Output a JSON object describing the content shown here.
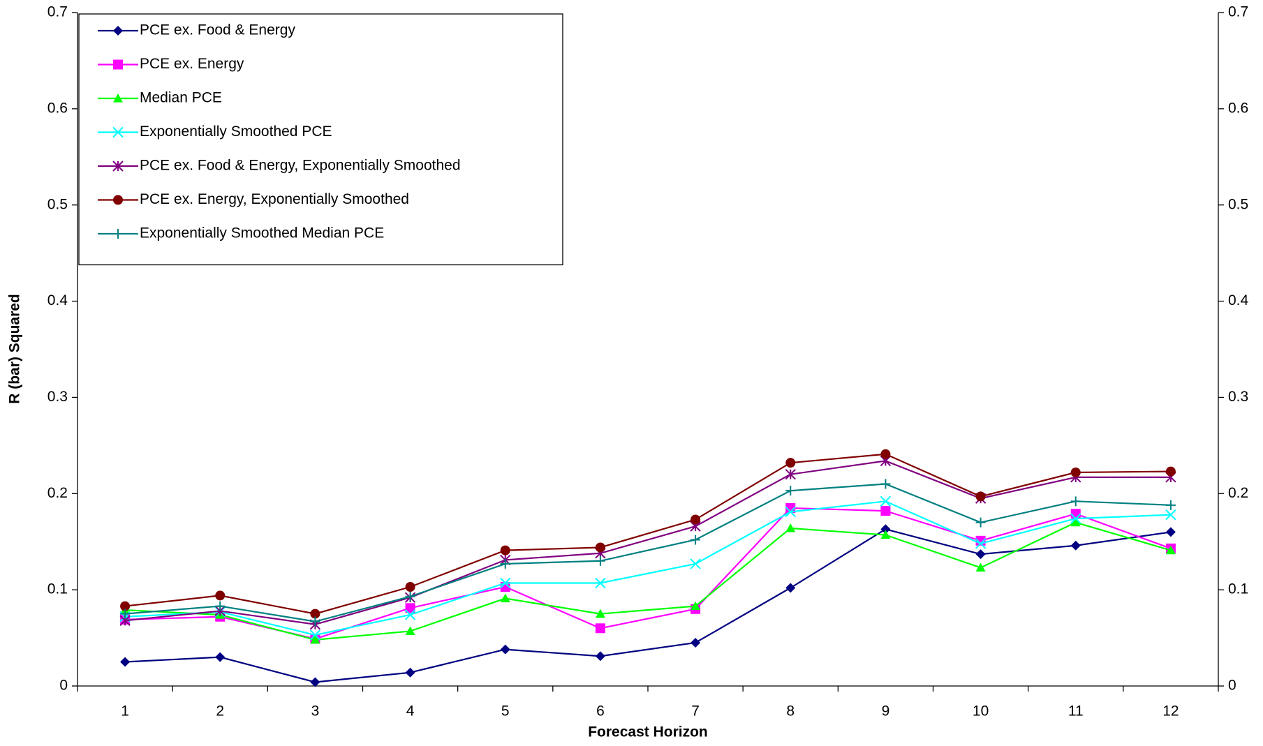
{
  "chart_data": {
    "type": "line",
    "x_label": "Forecast Horizon",
    "y_label": "R (bar) Squared",
    "categories": [
      "1",
      "2",
      "3",
      "4",
      "5",
      "6",
      "7",
      "8",
      "9",
      "10",
      "11",
      "12"
    ],
    "ylim": [
      0,
      0.7
    ],
    "yticks": [
      0,
      0.1,
      0.2,
      0.3,
      0.4,
      0.5,
      0.6,
      0.7
    ],
    "y2lim": [
      0,
      0.7
    ],
    "y2ticks": [
      0,
      0.1,
      0.2,
      0.3,
      0.4,
      0.5,
      0.6,
      0.7
    ],
    "legend": "upper left",
    "series": [
      {
        "name": "PCE ex. Food & Energy",
        "color": "#000080",
        "marker": "diamond",
        "values": [
          0.025,
          0.03,
          0.004,
          0.014,
          0.038,
          0.031,
          0.045,
          0.102,
          0.163,
          0.137,
          0.146,
          0.16
        ]
      },
      {
        "name": "PCE ex. Energy",
        "color": "#ff00ff",
        "marker": "square",
        "values": [
          0.069,
          0.072,
          0.049,
          0.081,
          0.103,
          0.06,
          0.08,
          0.185,
          0.182,
          0.151,
          0.179,
          0.143
        ]
      },
      {
        "name": "Median PCE",
        "color": "#00ff00",
        "marker": "triangle",
        "values": [
          0.079,
          0.074,
          0.048,
          0.057,
          0.091,
          0.075,
          0.083,
          0.164,
          0.157,
          0.123,
          0.17,
          0.141
        ]
      },
      {
        "name": "Exponentially Smoothed PCE",
        "color": "#00ffff",
        "marker": "x",
        "values": [
          0.072,
          0.077,
          0.053,
          0.074,
          0.107,
          0.107,
          0.127,
          0.181,
          0.192,
          0.148,
          0.174,
          0.178
        ]
      },
      {
        "name": "PCE ex. Food & Energy, Exponentially Smoothed",
        "color": "#800080",
        "marker": "star",
        "values": [
          0.068,
          0.078,
          0.064,
          0.092,
          0.131,
          0.138,
          0.166,
          0.22,
          0.234,
          0.195,
          0.217,
          0.217
        ]
      },
      {
        "name": "PCE ex. Energy, Exponentially Smoothed",
        "color": "#800000",
        "marker": "circle",
        "values": [
          0.083,
          0.094,
          0.075,
          0.103,
          0.141,
          0.144,
          0.173,
          0.232,
          0.241,
          0.197,
          0.222,
          0.223
        ]
      },
      {
        "name": "Exponentially Smoothed Median PCE",
        "color": "#008080",
        "marker": "plus",
        "values": [
          0.075,
          0.083,
          0.067,
          0.093,
          0.127,
          0.13,
          0.152,
          0.203,
          0.21,
          0.17,
          0.192,
          0.188
        ]
      }
    ]
  }
}
